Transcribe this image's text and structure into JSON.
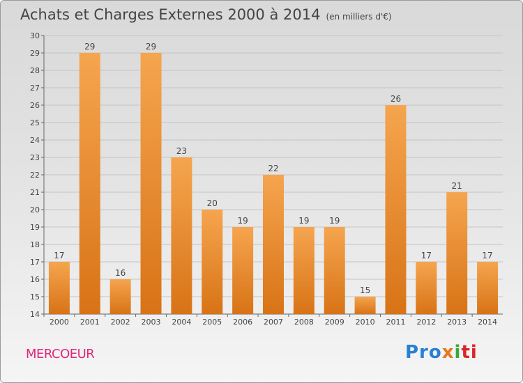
{
  "title": "Achats et Charges Externes 2000 à 2014",
  "subtitle": "(en milliers d'€)",
  "commune": "MERCOEUR",
  "logo": {
    "p1": "Pro",
    "p2": "x",
    "p3": "i",
    "p4": "ti"
  },
  "colors": {
    "bar_light": "#f5a54f",
    "bar_dark": "#d87316",
    "label": "#444444",
    "commune": "#e0287a"
  },
  "chart_data": {
    "type": "bar",
    "categories": [
      "2000",
      "2001",
      "2002",
      "2003",
      "2004",
      "2005",
      "2006",
      "2007",
      "2008",
      "2009",
      "2010",
      "2011",
      "2012",
      "2013",
      "2014"
    ],
    "values": [
      17,
      29,
      16,
      29,
      23,
      20,
      19,
      22,
      19,
      19,
      15,
      26,
      17,
      21,
      17
    ],
    "ylim": [
      14,
      30
    ],
    "yticks": [
      14,
      15,
      16,
      17,
      18,
      19,
      20,
      21,
      22,
      23,
      24,
      25,
      26,
      27,
      28,
      29,
      30
    ],
    "grid": true,
    "data_labels": true
  }
}
